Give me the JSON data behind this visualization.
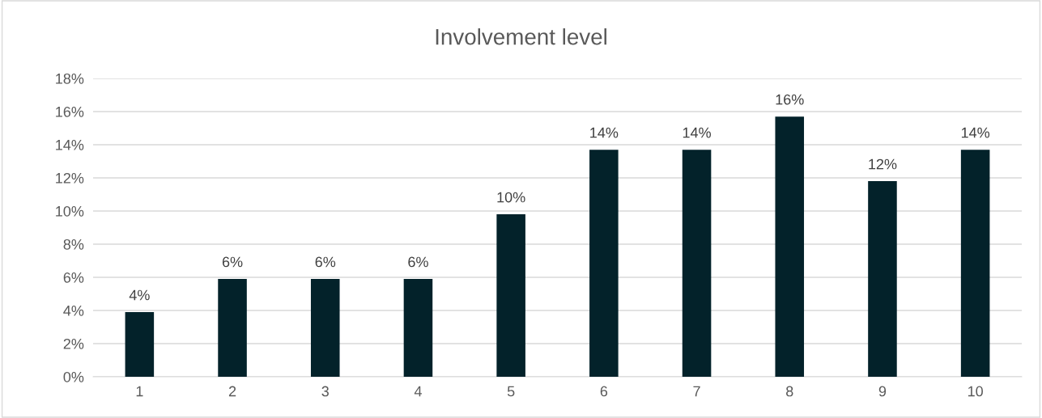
{
  "chart_data": {
    "type": "bar",
    "title": "Involvement level",
    "categories": [
      "1",
      "2",
      "3",
      "4",
      "5",
      "6",
      "7",
      "8",
      "9",
      "10"
    ],
    "values": [
      3.9,
      5.9,
      5.9,
      5.9,
      9.8,
      13.7,
      13.7,
      15.7,
      11.8,
      13.7
    ],
    "value_labels": [
      "4%",
      "6%",
      "6%",
      "6%",
      "10%",
      "14%",
      "14%",
      "16%",
      "12%",
      "14%"
    ],
    "color": "#03222a",
    "ylim": [
      0,
      18
    ],
    "yticks": [
      {
        "value": 0,
        "label": "0%"
      },
      {
        "value": 2,
        "label": "2%"
      },
      {
        "value": 4,
        "label": "4%"
      },
      {
        "value": 6,
        "label": "6%"
      },
      {
        "value": 8,
        "label": "8%"
      },
      {
        "value": 10,
        "label": "10%"
      },
      {
        "value": 12,
        "label": "12%"
      },
      {
        "value": 14,
        "label": "14%"
      },
      {
        "value": 16,
        "label": "16%"
      },
      {
        "value": 18,
        "label": "18%"
      }
    ],
    "grid": "y",
    "legend": false
  }
}
